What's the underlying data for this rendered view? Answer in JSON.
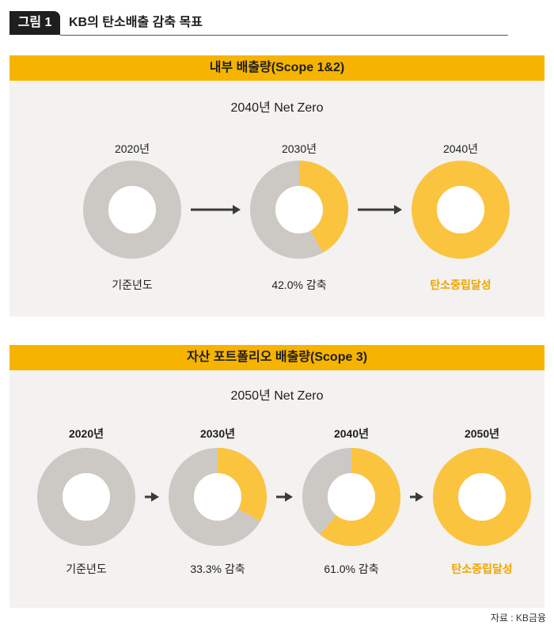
{
  "figure": {
    "badge": "그림 1",
    "title": "KB의 탄소배출 감축 목표"
  },
  "chart_data": [
    {
      "type": "pie",
      "title": "내부 배출량(Scope 1&2)",
      "subtitle": "2040년 Net Zero",
      "categories": [
        "2020년",
        "2030년",
        "2040년"
      ],
      "reduction_pct": [
        0,
        42.0,
        100
      ],
      "labels": [
        "기준년도",
        "42.0% 감축",
        "탄소중립달성"
      ]
    },
    {
      "type": "pie",
      "title": "자산 포트폴리오 배출량(Scope 3)",
      "subtitle": "2050년 Net Zero",
      "categories": [
        "2020년",
        "2030년",
        "2040년",
        "2050년"
      ],
      "reduction_pct": [
        0,
        33.3,
        61.0,
        100
      ],
      "labels": [
        "기준년도",
        "33.3% 감축",
        "61.0% 감축",
        "탄소중립달성"
      ]
    }
  ],
  "colors": {
    "remaining": "#ccc8c4",
    "reduced": "#fbc43f",
    "accent_bar": "#f6b400",
    "accent_text": "#f0a500",
    "arrow": "#3a3a3a"
  },
  "source": "자료 : KB금융"
}
